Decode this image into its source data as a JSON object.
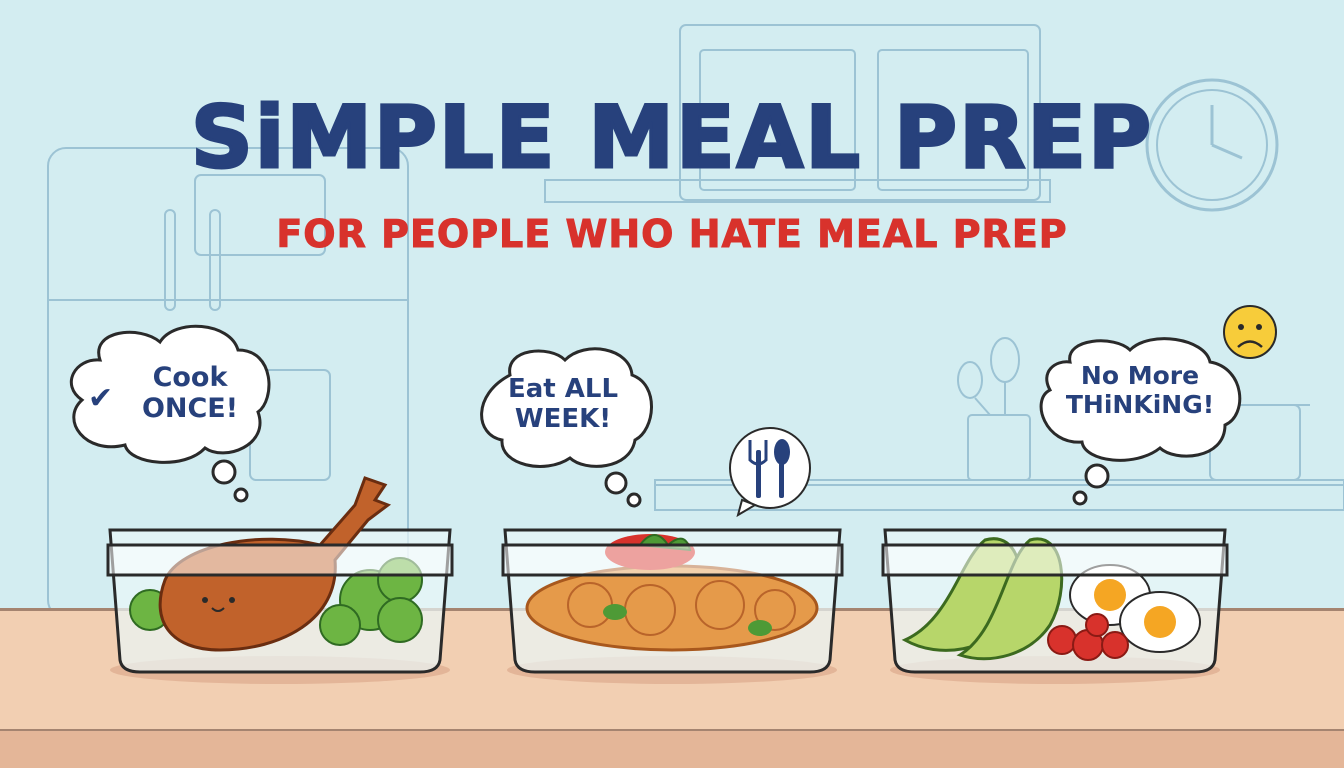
{
  "title": "SiMPLE MEAL PREP",
  "subtitle": "FOR PEOPLE WHO HATE MEAL PREP",
  "bubbles": [
    {
      "line1": "Cook",
      "line2": "ONCE!",
      "icon": "check-icon"
    },
    {
      "line1": "Eat ALL",
      "line2": "WEEK!"
    },
    {
      "line1": "No More",
      "line2": "THiNKiNG!"
    }
  ],
  "containers": [
    "chicken-and-broccoli",
    "spaghetti",
    "avocado-egg-tomato"
  ],
  "colors": {
    "background": "#d3edf1",
    "title": "#27417c",
    "subtitle": "#d8322c",
    "counter": "#f2cfb2",
    "outline": "#8fb8cc"
  }
}
